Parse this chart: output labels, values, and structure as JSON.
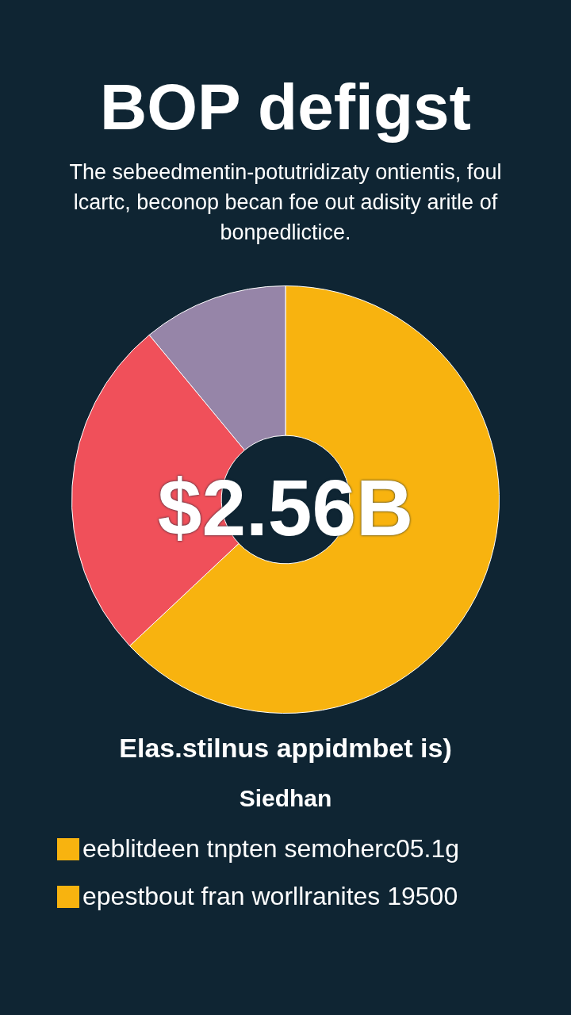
{
  "chart_data": {
    "type": "donut",
    "title": "BOP defigst",
    "subtitle": "The sebeedmentin-potutridizaty ontientis, foul lcartc, beconop becan foe out adisity aritle of bonpedlictice.",
    "categories": [
      null,
      null,
      null
    ],
    "values": [
      63,
      26,
      11
    ],
    "colors": [
      "#f8b30f",
      "#f0505a",
      "#9685a8"
    ],
    "annotations": [
      "$2.56B",
      "Elas.stilnus appidmbet is)",
      "Siedhan",
      "eeblitdeen tnpten semoherc05.1g",
      "epestbout fran worllranites 19500"
    ],
    "legend": false
  }
}
